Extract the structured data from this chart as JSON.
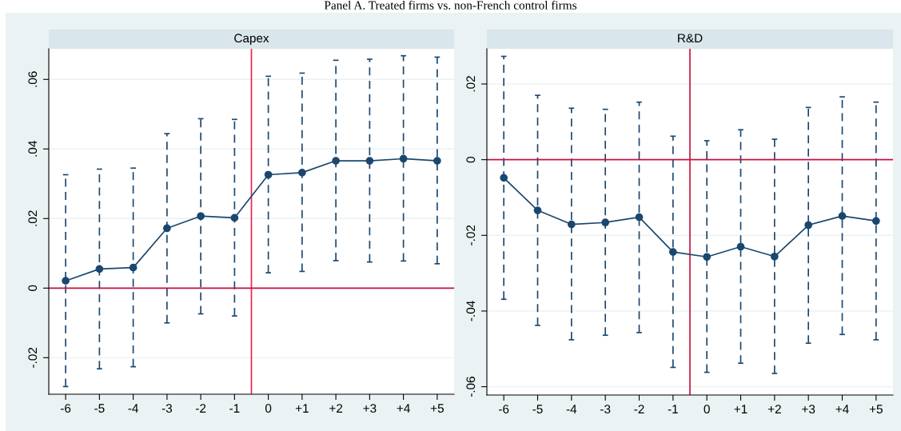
{
  "chart_data": [
    {
      "type": "line",
      "title": "Capex",
      "annotations": [
        "Panel A. Treated firms vs. non-French control firms"
      ],
      "x": [
        -6,
        -5,
        -4,
        -3,
        -2,
        -1,
        0,
        1,
        2,
        3,
        4,
        5
      ],
      "series": [
        {
          "color": "#1a476f",
          "values": [
            0.0021,
            0.0055,
            0.0059,
            0.0172,
            0.0207,
            0.0202,
            0.0326,
            0.0332,
            0.0366,
            0.0366,
            0.0372,
            0.0366
          ],
          "errors": [
            [
              -0.0283,
              0.0326
            ],
            [
              -0.0232,
              0.0342
            ],
            [
              -0.0226,
              0.0345
            ],
            [
              -0.01,
              0.0444
            ],
            [
              -0.0074,
              0.0487
            ],
            [
              -0.008,
              0.0485
            ],
            [
              0.0044,
              0.0609
            ],
            [
              0.0048,
              0.0618
            ],
            [
              0.0079,
              0.0655
            ],
            [
              0.0075,
              0.0658
            ],
            [
              0.0078,
              0.0668
            ],
            [
              0.007,
              0.0664
            ]
          ]
        }
      ],
      "xlim": [
        -6.5,
        5.5
      ],
      "ylim": [
        -0.0305,
        0.0688
      ],
      "xticks": [
        -6,
        -5,
        -4,
        -3,
        -2,
        -1,
        0,
        {
          "value": 1,
          "label": "+1"
        },
        {
          "value": 2,
          "label": "+2"
        },
        {
          "value": 3,
          "label": "+3"
        },
        {
          "value": 4,
          "label": "+4"
        },
        {
          "value": 5,
          "label": "+5"
        }
      ],
      "yticks": [
        {
          "value": -0.02,
          "label": "-.02"
        },
        0,
        {
          "value": 0.02,
          "label": ".02"
        },
        {
          "value": 0.04,
          "label": ".04"
        },
        {
          "value": 0.06,
          "label": ".06"
        }
      ],
      "ref_lines": [
        {
          "axis": "x",
          "value": -0.5,
          "color": "#e8254f"
        },
        {
          "axis": "y",
          "value": 0,
          "color": "#c8103e"
        }
      ],
      "grid": "y",
      "marker": "circle"
    },
    {
      "type": "line",
      "title": "R&D",
      "x": [
        -6,
        -5,
        -4,
        -3,
        -2,
        -1,
        0,
        1,
        2,
        3,
        4,
        5
      ],
      "series": [
        {
          "color": "#1a476f",
          "values": [
            -0.0048,
            -0.0134,
            -0.0171,
            -0.0166,
            -0.0152,
            -0.0244,
            -0.0257,
            -0.023,
            -0.0256,
            -0.0173,
            -0.0149,
            -0.0162
          ],
          "errors": [
            [
              -0.0369,
              0.0273
            ],
            [
              -0.0438,
              0.017
            ],
            [
              -0.0476,
              0.0136
            ],
            [
              -0.0464,
              0.0133
            ],
            [
              -0.0457,
              0.0152
            ],
            [
              -0.0549,
              0.0062
            ],
            [
              -0.0562,
              0.005
            ],
            [
              -0.0538,
              0.0079
            ],
            [
              -0.0565,
              0.0054
            ],
            [
              -0.0485,
              0.0138
            ],
            [
              -0.0462,
              0.0166
            ],
            [
              -0.0476,
              0.0152
            ]
          ]
        }
      ],
      "xlim": [
        -6.5,
        5.5
      ],
      "ylim": [
        -0.0622,
        0.0293
      ],
      "xticks": [
        -6,
        -5,
        -4,
        -3,
        -2,
        -1,
        0,
        {
          "value": 1,
          "label": "+1"
        },
        {
          "value": 2,
          "label": "+2"
        },
        {
          "value": 3,
          "label": "+3"
        },
        {
          "value": 4,
          "label": "+4"
        },
        {
          "value": 5,
          "label": "+5"
        }
      ],
      "yticks": [
        {
          "value": -0.06,
          "label": "-.06"
        },
        {
          "value": -0.04,
          "label": "-.04"
        },
        {
          "value": -0.02,
          "label": "-.02"
        },
        0,
        {
          "value": 0.02,
          "label": ".02"
        }
      ],
      "ref_lines": [
        {
          "axis": "x",
          "value": -0.5,
          "color": "#c8103e"
        },
        {
          "axis": "y",
          "value": 0,
          "color": "#c8103e"
        }
      ],
      "grid": "y",
      "marker": "circle"
    }
  ]
}
